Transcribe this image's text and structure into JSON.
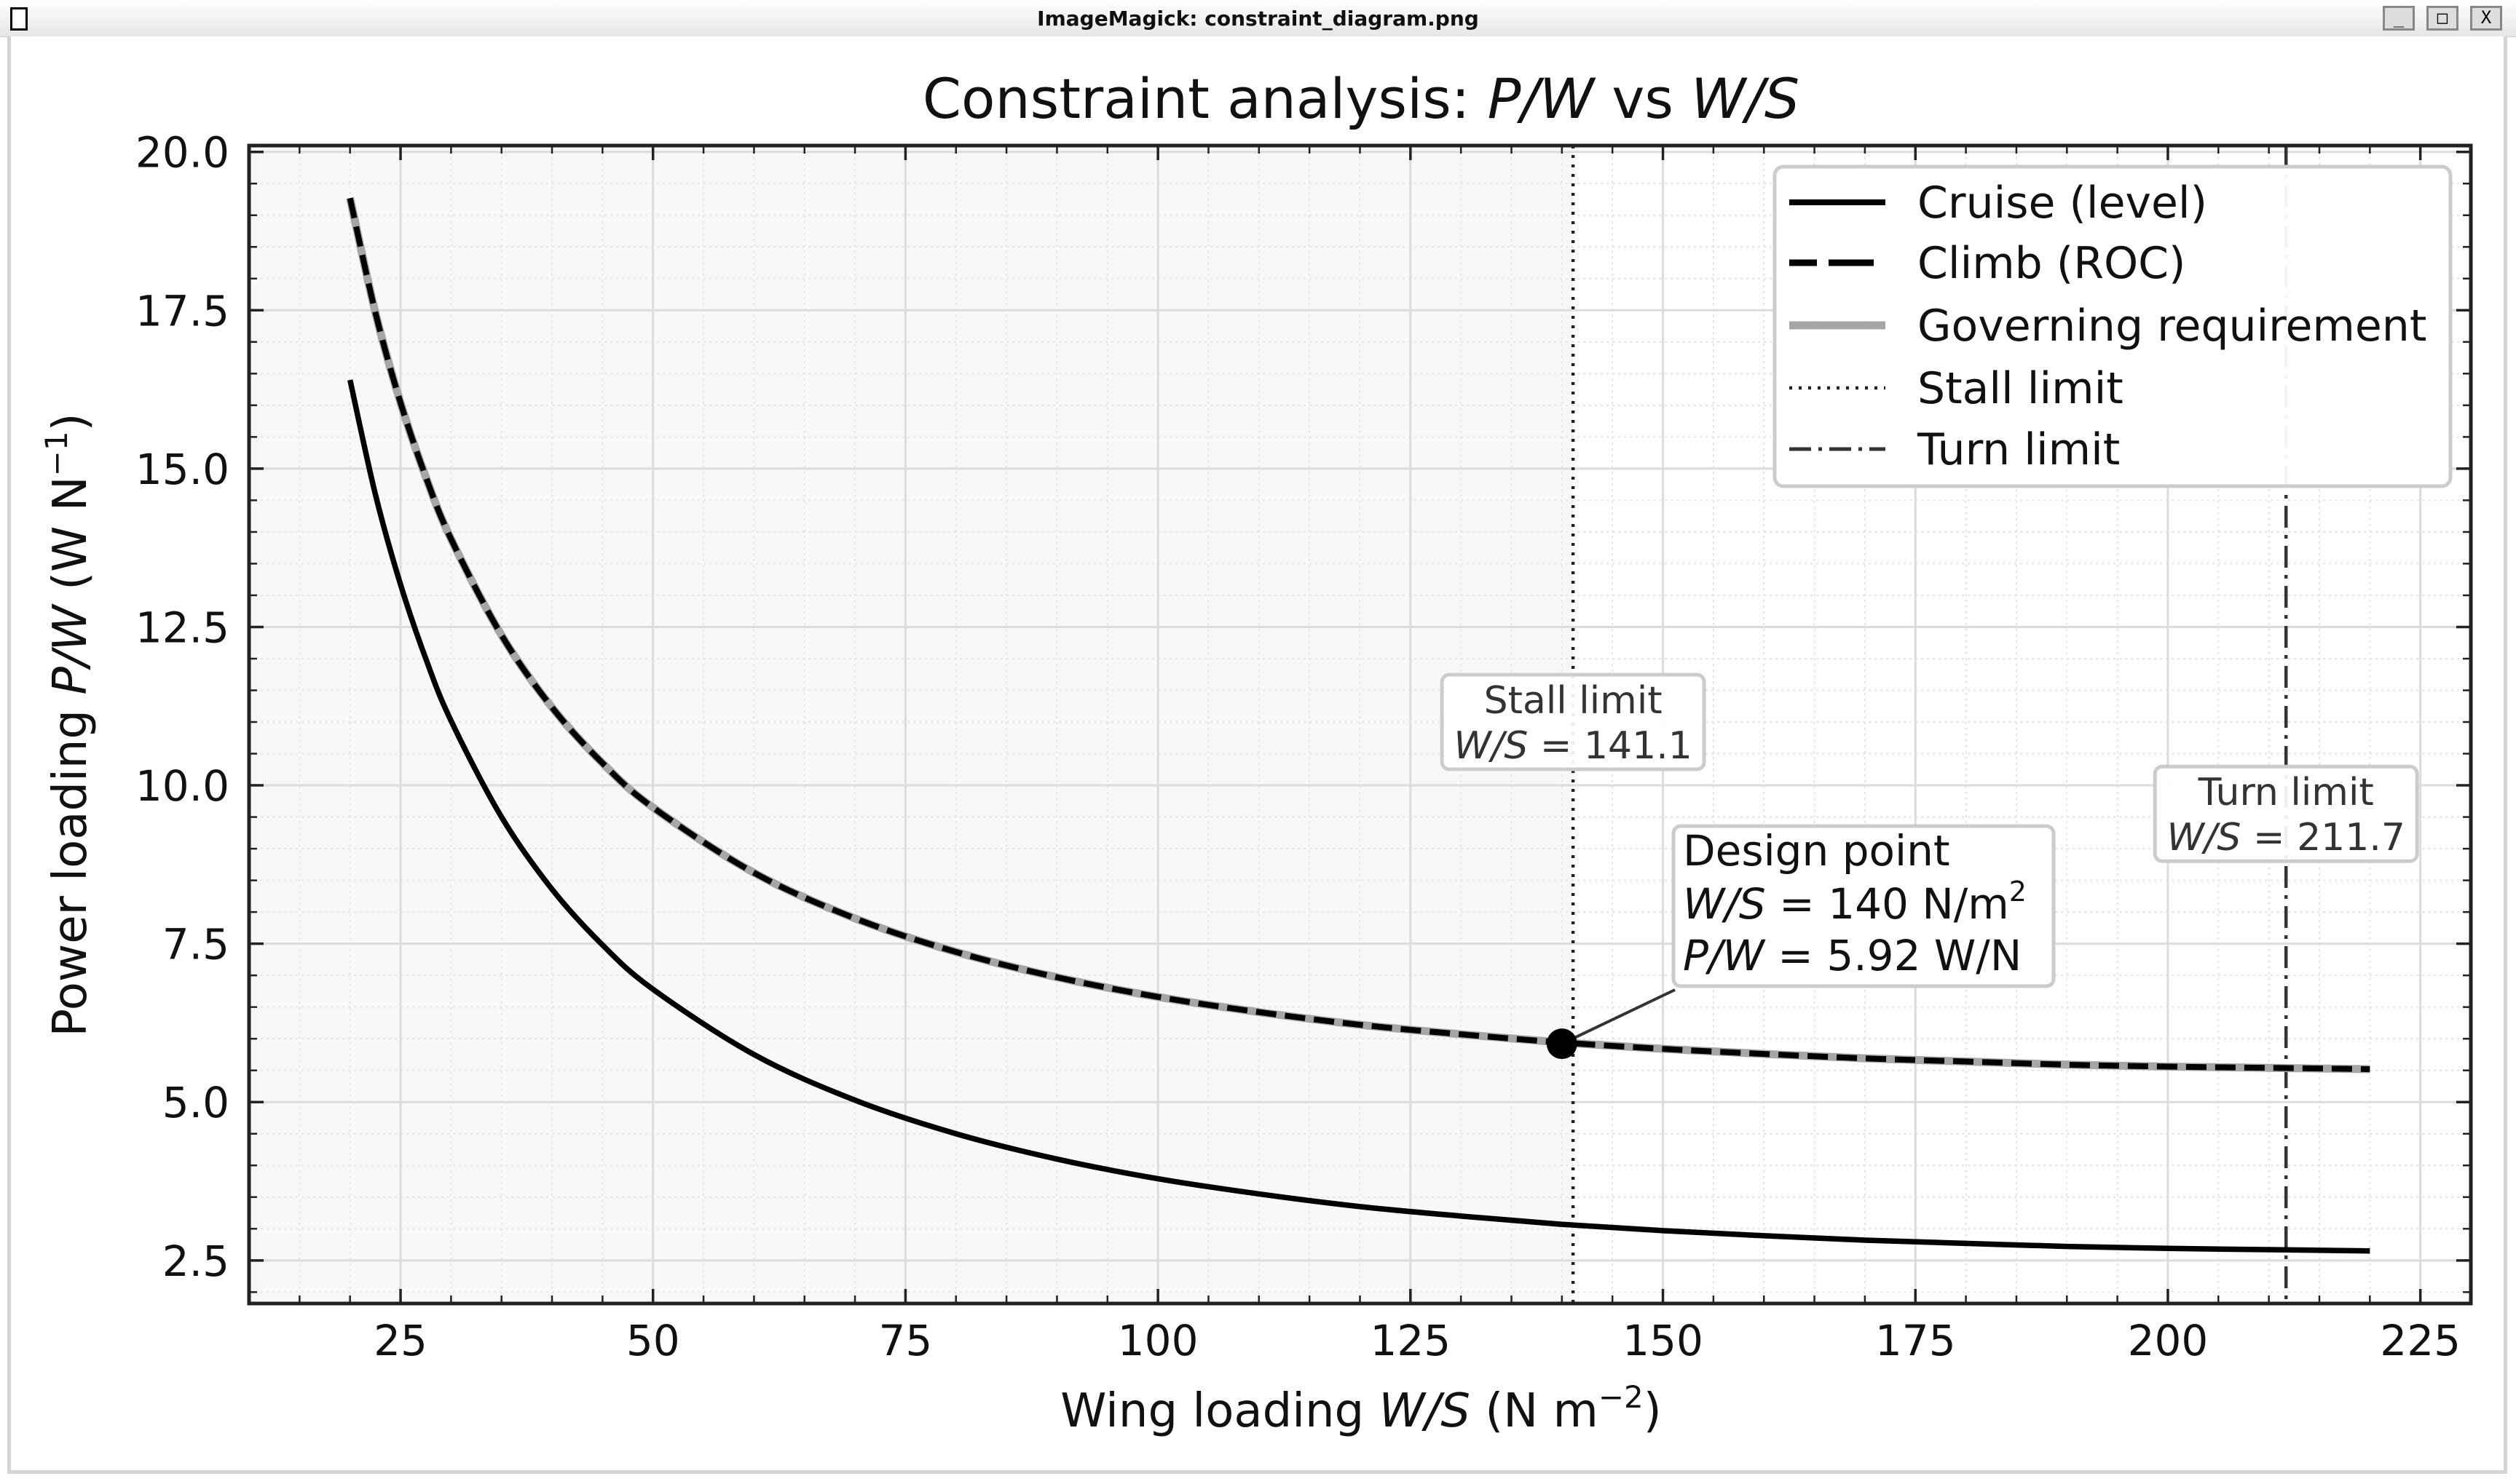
{
  "window": {
    "title": "ImageMagick: constraint_diagram.png",
    "buttons": [
      "_",
      "□",
      "X"
    ]
  },
  "chart_data": {
    "type": "line",
    "title": {
      "prefix": "Constraint analysis: ",
      "var1": "P/W",
      "mid": " vs ",
      "var2": "W/S"
    },
    "xlabel": {
      "prefix": "Wing loading ",
      "var": "W/S",
      "unit": " (N m",
      "exp": "−2",
      "close": ")"
    },
    "ylabel": {
      "prefix": "Power loading ",
      "var": "P/W",
      "unit": " (W N",
      "exp": "−1",
      "close": ")"
    },
    "xlim": [
      10,
      230
    ],
    "ylim": [
      1.82,
      20.1
    ],
    "xticks": [
      25,
      50,
      75,
      100,
      125,
      150,
      175,
      200,
      225
    ],
    "yticks": [
      2.5,
      5.0,
      7.5,
      10.0,
      12.5,
      15.0,
      17.5,
      20.0
    ],
    "xtick_labels": [
      "25",
      "50",
      "75",
      "100",
      "125",
      "150",
      "175",
      "200",
      "225"
    ],
    "ytick_labels": [
      "2.5",
      "5.0",
      "7.5",
      "10.0",
      "12.5",
      "15.0",
      "17.5",
      "20.0"
    ],
    "grid": true,
    "minor_grid": true,
    "x": [
      20,
      22.5,
      25,
      27.5,
      30,
      35,
      40,
      45,
      50,
      60,
      70,
      80,
      90,
      100,
      110,
      120,
      130,
      140,
      150,
      160,
      170,
      180,
      190,
      200,
      210,
      220
    ],
    "series": [
      {
        "name": "Cruise (level)",
        "style": "solid",
        "color": "#000000",
        "values": [
          16.4,
          14.6,
          13.17,
          12.0,
          11.02,
          9.5,
          8.36,
          7.48,
          6.78,
          5.75,
          5.03,
          4.5,
          4.1,
          3.79,
          3.55,
          3.35,
          3.2,
          3.07,
          2.97,
          2.89,
          2.82,
          2.77,
          2.72,
          2.69,
          2.67,
          2.65
        ]
      },
      {
        "name": "Climb (ROC)",
        "style": "dashed",
        "color": "#000000",
        "values": [
          19.27,
          17.47,
          16.04,
          14.87,
          13.89,
          12.37,
          11.23,
          10.35,
          9.65,
          8.62,
          7.9,
          7.37,
          6.97,
          6.66,
          6.42,
          6.22,
          6.07,
          5.94,
          5.84,
          5.76,
          5.69,
          5.64,
          5.59,
          5.56,
          5.54,
          5.52
        ]
      },
      {
        "name": "Governing requirement",
        "style": "solid-thick",
        "color": "#a6a6a6",
        "values": [
          19.27,
          17.47,
          16.04,
          14.87,
          13.89,
          12.37,
          11.23,
          10.35,
          9.65,
          8.62,
          7.9,
          7.37,
          6.97,
          6.66,
          6.42,
          6.22,
          6.07,
          5.94,
          5.84,
          5.76,
          5.69,
          5.64,
          5.59,
          5.56,
          5.54,
          5.52
        ]
      }
    ],
    "vlines": [
      {
        "name": "Stall limit",
        "x": 141.1,
        "style": "dotted",
        "color": "#222222",
        "label": "Stall limit",
        "var": "W/S",
        "value": " = 141.1",
        "label_y": 11.0
      },
      {
        "name": "Turn limit",
        "x": 211.7,
        "style": "dashdot",
        "color": "#333333",
        "label": "Turn limit",
        "var": "W/S",
        "value": " = 211.7",
        "label_y": 9.55
      }
    ],
    "feasible_shading": {
      "from": 10,
      "to": 141.1,
      "color": "#f8f8f8"
    },
    "design_point": {
      "x": 140,
      "y": 5.92,
      "title": "Design point",
      "ws_var": "W/S",
      "ws_value": " = 140 N/m",
      "ws_exp": "2",
      "pw_var": "P/W",
      "pw_value": " = 5.92 W/N"
    },
    "legend": {
      "placement": "top-right",
      "entries": [
        "Cruise (level)",
        "Climb (ROC)",
        "Governing requirement",
        "Stall limit",
        "Turn limit"
      ]
    }
  }
}
